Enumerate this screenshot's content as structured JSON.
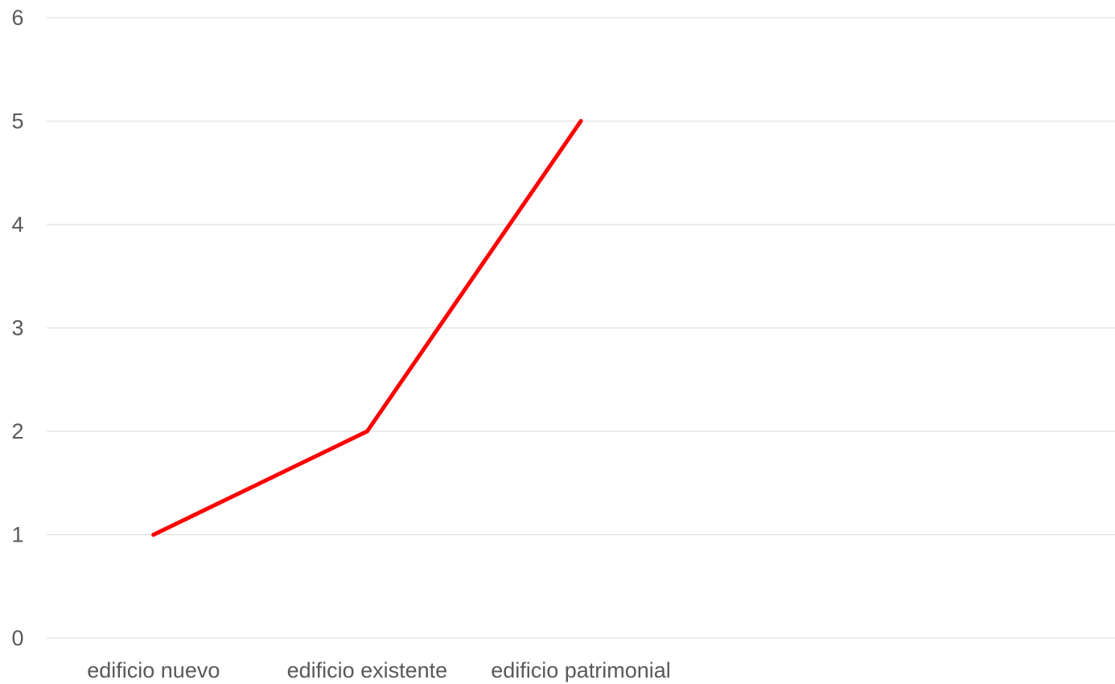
{
  "chart_data": {
    "type": "line",
    "categories": [
      "edificio nuevo",
      "edificio existente",
      "edificio patrimonial",
      "",
      ""
    ],
    "series": [
      {
        "values": [
          1,
          2,
          5,
          null,
          null
        ],
        "color": "#ff0000"
      }
    ],
    "xlabel": "",
    "ylabel": "",
    "ylim": [
      0,
      6
    ],
    "yticks": [
      "0",
      "1",
      "2",
      "3",
      "4",
      "5",
      "6"
    ],
    "grid": true,
    "legend": "none"
  }
}
